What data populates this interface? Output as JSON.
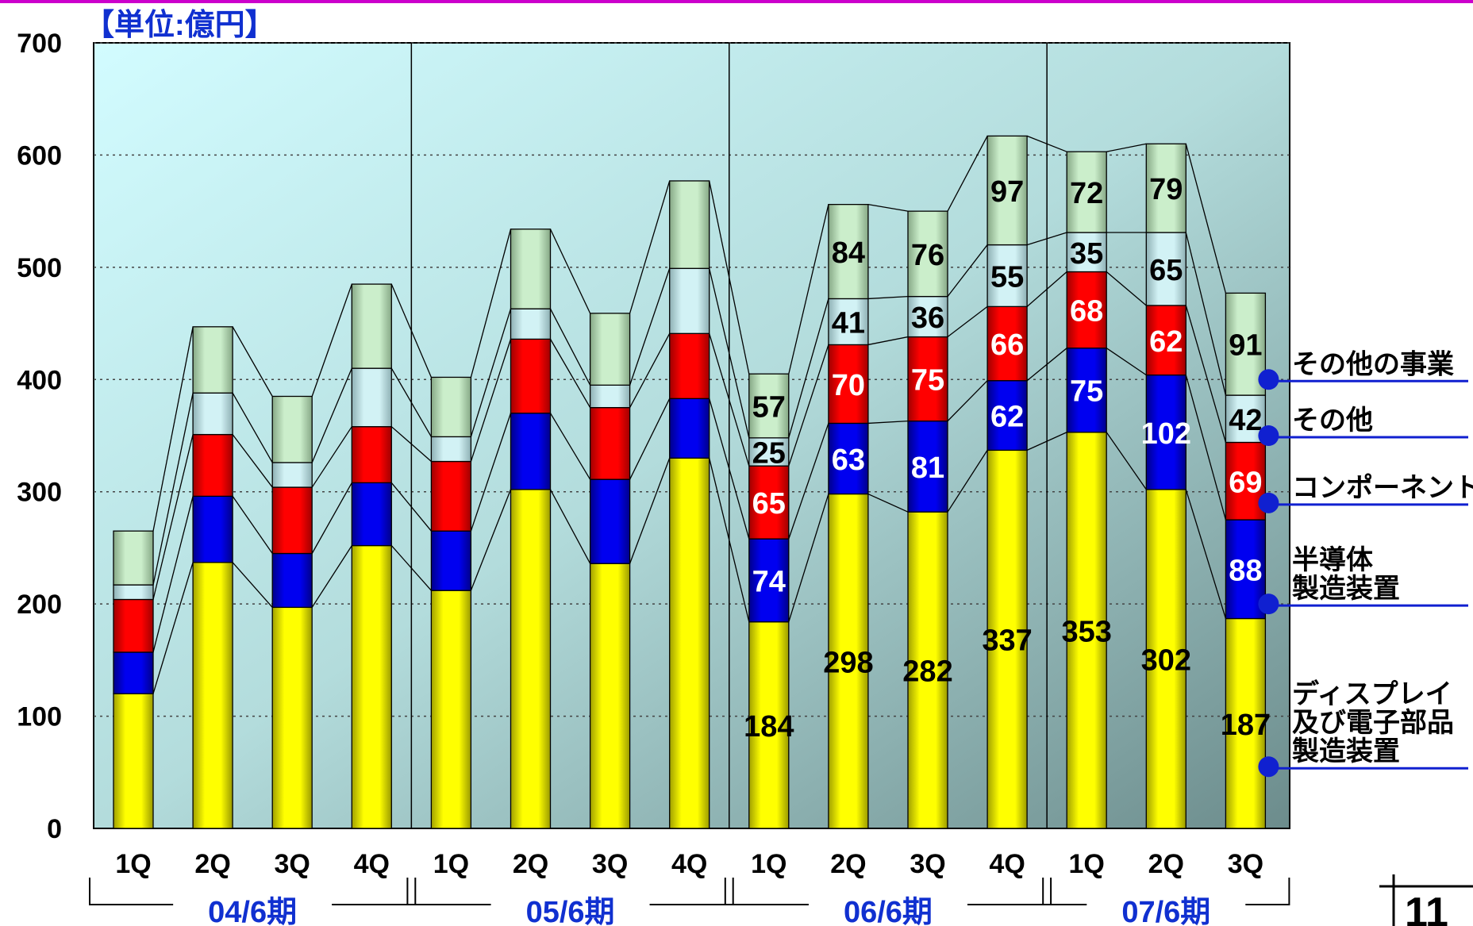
{
  "chart_data": {
    "type": "bar",
    "stacked": true,
    "unit_label": "【単位:億円】",
    "ylim": [
      0,
      700
    ],
    "yticks": [
      0,
      100,
      200,
      300,
      400,
      500,
      600,
      700
    ],
    "grid": true,
    "categories": [
      "1Q",
      "2Q",
      "3Q",
      "4Q",
      "1Q",
      "2Q",
      "3Q",
      "4Q",
      "1Q",
      "2Q",
      "3Q",
      "4Q",
      "1Q",
      "2Q",
      "3Q"
    ],
    "periods": [
      {
        "label": "04/6期",
        "count": 4
      },
      {
        "label": "05/6期",
        "count": 4
      },
      {
        "label": "06/6期",
        "count": 4
      },
      {
        "label": "07/6期",
        "count": 3
      }
    ],
    "series": [
      {
        "name": "ディスプレイ\n及び電子部品\n製造装置",
        "color": "#ffff00",
        "values": [
          120,
          237,
          197,
          252,
          212,
          302,
          236,
          330,
          184,
          298,
          282,
          337,
          353,
          302,
          187
        ],
        "labels": [
          "",
          "",
          "",
          "",
          "",
          "",
          "",
          "",
          "184",
          "298",
          "282",
          "337",
          "353",
          "302",
          "187"
        ]
      },
      {
        "name": "半導体\n製造装置",
        "color": "#0000ee",
        "values": [
          37,
          59,
          48,
          56,
          53,
          68,
          75,
          53,
          74,
          63,
          81,
          62,
          75,
          102,
          88
        ],
        "labels": [
          "",
          "",
          "",
          "",
          "",
          "",
          "",
          "",
          "74",
          "63",
          "81",
          "62",
          "75",
          "102",
          "88"
        ]
      },
      {
        "name": "コンポーネント",
        "color": "#ff0000",
        "values": [
          47,
          55,
          59,
          50,
          62,
          66,
          64,
          58,
          65,
          70,
          75,
          66,
          68,
          62,
          69
        ],
        "labels": [
          "",
          "",
          "",
          "",
          "",
          "",
          "",
          "",
          "65",
          "70",
          "75",
          "66",
          "68",
          "62",
          "69"
        ]
      },
      {
        "name": "その他",
        "color": "#cceff2",
        "values": [
          13,
          37,
          22,
          52,
          22,
          27,
          20,
          58,
          25,
          41,
          36,
          55,
          35,
          65,
          42
        ],
        "labels": [
          "",
          "",
          "",
          "",
          "",
          "",
          "",
          "",
          "25",
          "41",
          "36",
          "55",
          "35",
          "65",
          "42"
        ]
      },
      {
        "name": "その他の事業",
        "color": "#c3e8c3",
        "values": [
          48,
          59,
          59,
          75,
          53,
          71,
          64,
          78,
          57,
          84,
          76,
          97,
          72,
          79,
          91
        ],
        "labels": [
          "",
          "",
          "",
          "",
          "",
          "",
          "",
          "",
          "57",
          "84",
          "76",
          "97",
          "72",
          "79",
          "91"
        ]
      }
    ],
    "legend_placement": "right"
  },
  "page_number": "11"
}
